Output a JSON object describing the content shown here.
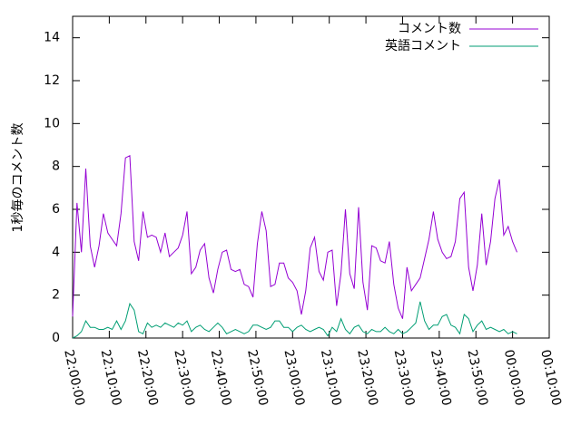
{
  "chart_data": {
    "type": "line",
    "ylabel": "1秒毎のコメント数",
    "x": [
      "22:00:00",
      "22:01:12",
      "22:02:24",
      "22:03:36",
      "22:04:48",
      "22:06:00",
      "22:07:12",
      "22:08:24",
      "22:09:36",
      "22:10:48",
      "22:12:00",
      "22:13:12",
      "22:14:24",
      "22:15:36",
      "22:16:48",
      "22:18:00",
      "22:19:12",
      "22:20:24",
      "22:21:36",
      "22:22:48",
      "22:24:00",
      "22:25:12",
      "22:26:24",
      "22:27:36",
      "22:28:48",
      "22:30:00",
      "22:31:12",
      "22:32:24",
      "22:33:36",
      "22:34:48",
      "22:36:00",
      "22:37:12",
      "22:38:24",
      "22:39:36",
      "22:40:48",
      "22:42:00",
      "22:43:12",
      "22:44:24",
      "22:45:36",
      "22:46:48",
      "22:48:00",
      "22:49:12",
      "22:50:24",
      "22:51:36",
      "22:52:48",
      "22:54:00",
      "22:55:12",
      "22:56:24",
      "22:57:36",
      "22:58:48",
      "23:00:00",
      "23:01:12",
      "23:02:24",
      "23:03:36",
      "23:04:48",
      "23:06:00",
      "23:07:12",
      "23:08:24",
      "23:09:36",
      "23:10:48",
      "23:12:00",
      "23:13:12",
      "23:14:24",
      "23:15:36",
      "23:16:48",
      "23:18:00",
      "23:19:12",
      "23:20:24",
      "23:21:36",
      "23:22:48",
      "23:24:00",
      "23:25:12",
      "23:26:24",
      "23:27:36",
      "23:28:48",
      "23:30:00",
      "23:31:12",
      "23:32:24",
      "23:33:36",
      "23:34:48",
      "23:36:00",
      "23:37:12",
      "23:38:24",
      "23:39:36",
      "23:40:48",
      "23:42:00",
      "23:43:12",
      "23:44:24",
      "23:45:36",
      "23:46:48",
      "23:48:00",
      "23:49:12",
      "23:50:24",
      "23:51:36",
      "23:52:48",
      "23:54:00",
      "23:55:12",
      "23:56:24",
      "23:57:36",
      "23:58:48",
      "00:00:00",
      "00:01:12"
    ],
    "series": [
      {
        "name": "コメント数",
        "color": "#9400d3",
        "values": [
          1.0,
          6.3,
          4.0,
          7.9,
          4.3,
          3.3,
          4.3,
          5.8,
          4.9,
          4.6,
          4.3,
          5.8,
          8.4,
          8.5,
          4.5,
          3.6,
          5.9,
          4.7,
          4.8,
          4.7,
          4.0,
          4.9,
          3.8,
          4.0,
          4.2,
          4.8,
          5.9,
          3.0,
          3.3,
          4.1,
          4.4,
          2.8,
          2.1,
          3.2,
          4.0,
          4.1,
          3.2,
          3.1,
          3.2,
          2.5,
          2.4,
          1.9,
          4.4,
          5.9,
          5.0,
          2.4,
          2.5,
          3.5,
          3.5,
          2.8,
          2.6,
          2.2,
          1.1,
          2.2,
          4.2,
          4.7,
          3.1,
          2.7,
          4.0,
          4.1,
          1.5,
          3.0,
          6.0,
          3.0,
          2.3,
          6.1,
          2.6,
          1.3,
          4.3,
          4.2,
          3.6,
          3.5,
          4.5,
          2.5,
          1.4,
          0.9,
          3.3,
          2.2,
          2.5,
          2.8,
          3.7,
          4.6,
          5.9,
          4.6,
          4.0,
          3.7,
          3.8,
          4.5,
          6.5,
          6.8,
          3.3,
          2.2,
          3.4,
          5.8,
          3.4,
          4.5,
          6.5,
          7.4,
          4.8,
          5.2,
          4.5,
          4.0
        ]
      },
      {
        "name": "英語コメント",
        "color": "#009e73",
        "values": [
          0.0,
          0.1,
          0.3,
          0.8,
          0.5,
          0.5,
          0.4,
          0.4,
          0.5,
          0.4,
          0.8,
          0.4,
          0.8,
          1.6,
          1.3,
          0.3,
          0.2,
          0.7,
          0.5,
          0.6,
          0.5,
          0.7,
          0.6,
          0.5,
          0.7,
          0.6,
          0.8,
          0.3,
          0.5,
          0.6,
          0.4,
          0.3,
          0.5,
          0.7,
          0.5,
          0.2,
          0.3,
          0.4,
          0.3,
          0.2,
          0.3,
          0.6,
          0.6,
          0.5,
          0.4,
          0.5,
          0.8,
          0.8,
          0.5,
          0.5,
          0.3,
          0.5,
          0.6,
          0.4,
          0.3,
          0.4,
          0.5,
          0.4,
          0.1,
          0.5,
          0.3,
          0.9,
          0.4,
          0.2,
          0.5,
          0.6,
          0.3,
          0.2,
          0.4,
          0.3,
          0.3,
          0.5,
          0.3,
          0.2,
          0.4,
          0.2,
          0.3,
          0.5,
          0.7,
          1.7,
          0.8,
          0.4,
          0.6,
          0.6,
          1.0,
          1.1,
          0.6,
          0.5,
          0.2,
          1.1,
          0.9,
          0.3,
          0.6,
          0.8,
          0.4,
          0.5,
          0.4,
          0.3,
          0.4,
          0.2,
          0.3,
          0.2
        ]
      }
    ],
    "xlim": [
      "22:00:00",
      "00:10:00"
    ],
    "xticks": [
      "22:00:00",
      "22:10:00",
      "22:20:00",
      "22:30:00",
      "22:40:00",
      "22:50:00",
      "23:00:00",
      "23:10:00",
      "23:20:00",
      "23:30:00",
      "23:40:00",
      "23:50:00",
      "00:00:00",
      "00:10:00"
    ],
    "ylim": [
      0,
      15
    ],
    "yticks": [
      0,
      2,
      4,
      6,
      8,
      10,
      12,
      14
    ],
    "legend": "top-right"
  }
}
